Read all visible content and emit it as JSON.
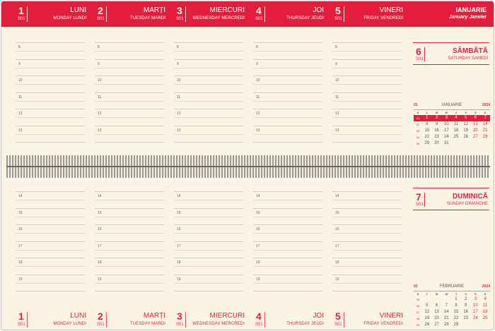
{
  "month_header": {
    "name": "IANUARIE",
    "sub": "January  Janvier"
  },
  "week_label": "S01",
  "days": [
    {
      "num": "1",
      "name": "LUNI",
      "sub": "MONDAY  LUNDI"
    },
    {
      "num": "2",
      "name": "MARȚI",
      "sub": "TUESDAY  MARDI"
    },
    {
      "num": "3",
      "name": "MIERCURI",
      "sub": "WEDNESDAY  MERCREDI"
    },
    {
      "num": "4",
      "name": "JOI",
      "sub": "THURSDAY  JEUDI"
    },
    {
      "num": "5",
      "name": "VINERI",
      "sub": "FRIDAY  VENDREDI"
    }
  ],
  "hours_top": [
    "8",
    "9",
    "10",
    "11",
    "12",
    "13"
  ],
  "hours_bottom": [
    "14",
    "15",
    "16",
    "17",
    "18",
    "19"
  ],
  "saturday": {
    "num": "6",
    "week": "S01",
    "name": "SÂMBĂTĂ",
    "sub": "SATURDAY  SAMEDI"
  },
  "sunday": {
    "num": "7",
    "week": "S01",
    "name": "DUMINICĂ",
    "sub": "SUNDAY  DIMANCHE"
  },
  "cal_jan": {
    "no": "01",
    "name": "IANUARIE",
    "year": "2024",
    "dow": [
      "S",
      "L",
      "M",
      "M",
      "J",
      "V",
      "S",
      "D"
    ],
    "rows": [
      [
        "01",
        "1",
        "2",
        "3",
        "4",
        "5",
        "6",
        "7"
      ],
      [
        "02",
        "8",
        "9",
        "10",
        "11",
        "12",
        "13",
        "14"
      ],
      [
        "03",
        "15",
        "16",
        "17",
        "18",
        "19",
        "20",
        "21"
      ],
      [
        "04",
        "22",
        "23",
        "24",
        "25",
        "26",
        "27",
        "28"
      ],
      [
        "05",
        "29",
        "30",
        "31",
        "",
        "",
        "",
        ""
      ]
    ]
  },
  "cal_feb": {
    "no": "02",
    "name": "FEBRUARIE",
    "year": "2024",
    "dow": [
      "S",
      "L",
      "M",
      "M",
      "J",
      "V",
      "S",
      "D"
    ],
    "rows": [
      [
        "05",
        "",
        "",
        "",
        "1",
        "2",
        "3",
        "4"
      ],
      [
        "06",
        "5",
        "6",
        "7",
        "8",
        "9",
        "10",
        "11"
      ],
      [
        "07",
        "12",
        "13",
        "14",
        "15",
        "16",
        "17",
        "18"
      ],
      [
        "08",
        "19",
        "20",
        "21",
        "22",
        "23",
        "24",
        "25"
      ],
      [
        "09",
        "26",
        "27",
        "28",
        "29",
        "",
        "",
        ""
      ]
    ]
  },
  "colors": {
    "accent": "#e31e3c",
    "paper": "#fbf3e4"
  }
}
